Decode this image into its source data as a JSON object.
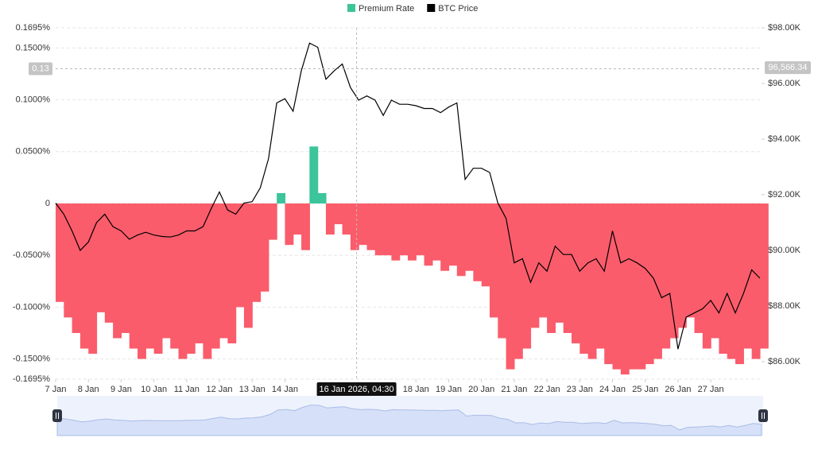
{
  "chart_data": {
    "type": "bar-line",
    "x": [
      7,
      7.25,
      7.5,
      7.75,
      8,
      8.25,
      8.5,
      8.75,
      9,
      9.25,
      9.5,
      9.75,
      10,
      10.25,
      10.5,
      10.75,
      11,
      11.25,
      11.5,
      11.75,
      12,
      12.25,
      12.5,
      12.75,
      13,
      13.25,
      13.5,
      13.75,
      14,
      14.25,
      14.5,
      14.75,
      15,
      15.25,
      15.5,
      15.75,
      16,
      16.25,
      16.5,
      16.75,
      17,
      17.25,
      17.5,
      17.75,
      18,
      18.25,
      18.5,
      18.75,
      19,
      19.25,
      19.5,
      19.75,
      20,
      20.25,
      20.5,
      20.75,
      21,
      21.25,
      21.5,
      21.75,
      22,
      22.25,
      22.5,
      22.75,
      23,
      23.25,
      23.5,
      23.75,
      24,
      24.25,
      24.5,
      24.75,
      25,
      25.25,
      25.5,
      25.75,
      26,
      26.25,
      26.5,
      26.75,
      27,
      27.25,
      27.5,
      27.75,
      28,
      28.25,
      28.5
    ],
    "xlim": [
      7,
      28.55
    ],
    "xticks": [
      {
        "value": 7,
        "label": "7 Jan"
      },
      {
        "value": 8,
        "label": "8 Jan"
      },
      {
        "value": 9,
        "label": "9 Jan"
      },
      {
        "value": 10,
        "label": "10 Jan"
      },
      {
        "value": 11,
        "label": "11 Jan"
      },
      {
        "value": 12,
        "label": "12 Jan"
      },
      {
        "value": 13,
        "label": "13 Jan"
      },
      {
        "value": 14,
        "label": "14 Jan"
      },
      {
        "value": 18,
        "label": "18 Jan"
      },
      {
        "value": 19,
        "label": "19 Jan"
      },
      {
        "value": 20,
        "label": "20 Jan"
      },
      {
        "value": 21,
        "label": "21 Jan"
      },
      {
        "value": 22,
        "label": "22 Jan"
      },
      {
        "value": 23,
        "label": "23 Jan"
      },
      {
        "value": 24,
        "label": "24 Jan"
      },
      {
        "value": 25,
        "label": "25 Jan"
      },
      {
        "value": 26,
        "label": "26 Jan"
      },
      {
        "value": 27,
        "label": "27 Jan"
      }
    ],
    "ylim": [
      -0.1695,
      0.1695
    ],
    "yticks": [
      {
        "value": 0.1695,
        "label": "0.1695%"
      },
      {
        "value": 0.15,
        "label": "0.1500%"
      },
      {
        "value": 0.1,
        "label": "0.1000%"
      },
      {
        "value": 0.05,
        "label": "0.0500%"
      },
      0,
      {
        "value": -0.05,
        "label": "-0.0500%"
      },
      {
        "value": -0.1,
        "label": "-0.1000%"
      },
      {
        "value": -0.15,
        "label": "-0.1500%"
      },
      {
        "value": -0.1695,
        "label": "-0.1695%"
      }
    ],
    "y2lim": [
      85370,
      98000
    ],
    "y2ticks": [
      {
        "value": 98000,
        "label": "$98.00K"
      },
      {
        "value": 96000,
        "label": "$96.00K"
      },
      {
        "value": 94000,
        "label": "$94.00K"
      },
      {
        "value": 92000,
        "label": "$92.00K"
      },
      {
        "value": 90000,
        "label": "$90.00K"
      },
      {
        "value": 88000,
        "label": "$88.00K"
      },
      {
        "value": 86000,
        "label": "$86.00K"
      }
    ],
    "grid": true,
    "legend": "top",
    "series": [
      {
        "name": "Premium Rate",
        "color": "#3cc49a",
        "negative_color": "#fa5c6b",
        "values": [
          -0.095,
          -0.11,
          -0.125,
          -0.14,
          -0.145,
          -0.105,
          -0.115,
          -0.13,
          -0.125,
          -0.14,
          -0.15,
          -0.14,
          -0.145,
          -0.13,
          -0.14,
          -0.15,
          -0.145,
          -0.135,
          -0.15,
          -0.14,
          -0.13,
          -0.135,
          -0.1,
          -0.12,
          -0.095,
          -0.085,
          -0.035,
          0.01,
          -0.04,
          -0.03,
          -0.045,
          0.055,
          0.01,
          -0.03,
          -0.02,
          -0.03,
          -0.045,
          -0.04,
          -0.045,
          -0.05,
          -0.05,
          -0.055,
          -0.05,
          -0.055,
          -0.05,
          -0.06,
          -0.055,
          -0.065,
          -0.06,
          -0.07,
          -0.065,
          -0.075,
          -0.08,
          -0.11,
          -0.13,
          -0.16,
          -0.15,
          -0.14,
          -0.12,
          -0.11,
          -0.125,
          -0.115,
          -0.125,
          -0.135,
          -0.145,
          -0.15,
          -0.14,
          -0.155,
          -0.16,
          -0.165,
          -0.16,
          -0.16,
          -0.155,
          -0.15,
          -0.14,
          -0.13,
          -0.12,
          -0.11,
          -0.125,
          -0.14,
          -0.13,
          -0.145,
          -0.15,
          -0.155,
          -0.14,
          -0.15,
          -0.14
        ]
      },
      {
        "name": "BTC Price",
        "color": "#000000",
        "axis": "y2",
        "values": [
          91700,
          91300,
          90700,
          90000,
          90300,
          91000,
          91300,
          90850,
          90700,
          90400,
          90550,
          90650,
          90550,
          90500,
          90480,
          90550,
          90700,
          90700,
          90850,
          91500,
          92100,
          91450,
          91300,
          91700,
          91750,
          92250,
          93300,
          95300,
          95450,
          95000,
          96450,
          97450,
          97300,
          96150,
          96450,
          96700,
          95850,
          95400,
          95550,
          95400,
          94850,
          95400,
          95250,
          95250,
          95200,
          95100,
          95100,
          94950,
          95150,
          95300,
          92550,
          92950,
          92950,
          92800,
          91700,
          91150,
          89550,
          89700,
          88850,
          89550,
          89250,
          90150,
          89850,
          89850,
          89250,
          89550,
          89700,
          89250,
          90700,
          89550,
          89700,
          89550,
          89350,
          89000,
          88300,
          88450,
          86450,
          87600,
          87750,
          87900,
          88200,
          87750,
          88450,
          87750,
          88450,
          89300,
          89000
        ]
      }
    ],
    "crosshair": {
      "x": {
        "value": 16.1875,
        "label": "16 Jan 2026, 04:30"
      },
      "y": {
        "value": 0.13,
        "label": "0.13"
      },
      "y2": {
        "value": 96566.34,
        "label": "96,566.34"
      }
    }
  }
}
